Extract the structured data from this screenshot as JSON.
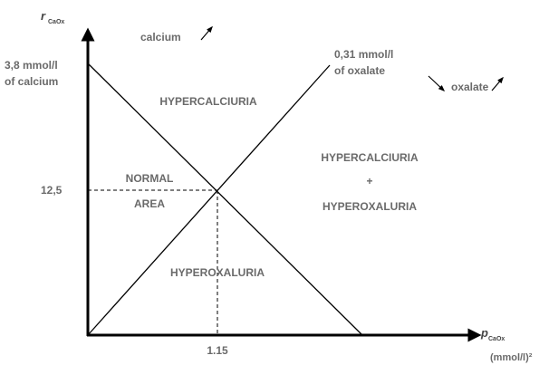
{
  "axes": {
    "y_symbol": "r",
    "y_subscript": "CaOx",
    "x_symbol": "p",
    "x_subscript": "CaOx",
    "x_unit": "(mmol/l)²",
    "y_tick": "12,5",
    "x_tick": "1.15"
  },
  "calcium_line": {
    "label_line1": "3,8 mmol/l",
    "label_line2": "of calcium",
    "direction_label": "calcium"
  },
  "oxalate_line": {
    "label_line1": "0,31 mmol/l",
    "label_line2": "of oxalate",
    "direction_label": "oxalate"
  },
  "regions": {
    "top": "HYPERCALCIURIA",
    "right_line1": "HYPERCALCIURIA",
    "right_line2": "+",
    "right_line3": "HYPEROXALURIA",
    "left_line1": "NORMAL",
    "left_line2": "AREA",
    "bottom": "HYPEROXALURIA"
  }
}
